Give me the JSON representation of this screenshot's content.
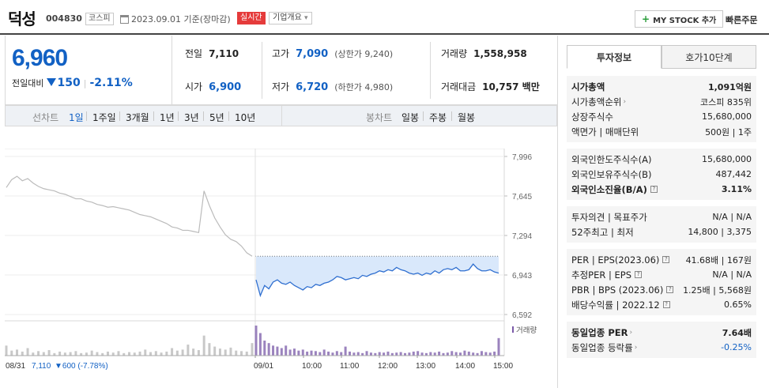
{
  "header": {
    "name": "덕성",
    "code": "004830",
    "market": "코스피",
    "date_text": "2023.09.01 기준(장마감)",
    "realtime": "실시간",
    "company_info": "기업개요",
    "my_stock": "MY STOCK 추가",
    "quick_order": "빠른주문"
  },
  "price": {
    "current": "6,960",
    "change_label": "전일대비",
    "change_value": "150",
    "change_pct": "-2.11%"
  },
  "stats": {
    "prev_label": "전일",
    "prev": "7,110",
    "high_label": "고가",
    "high": "7,090",
    "upper_limit": "(상한가 9,240)",
    "volume_label": "거래량",
    "volume": "1,558,958",
    "open_label": "시가",
    "open": "6,900",
    "low_label": "저가",
    "low": "6,720",
    "lower_limit": "(하한가 4,980)",
    "amount_label": "거래대금",
    "amount": "10,757 백만"
  },
  "period_bar": {
    "line_label": "선차트",
    "line_items": [
      "1일",
      "1주일",
      "3개월",
      "1년",
      "3년",
      "5년",
      "10년"
    ],
    "candle_label": "봉차트",
    "candle_items": [
      "일봉",
      "주봉",
      "월봉"
    ]
  },
  "chart_data": {
    "type": "line",
    "y_ticks": [
      "7,996",
      "7,645",
      "7,294",
      "6,943",
      "6,592"
    ],
    "y_range": [
      6592,
      7996
    ],
    "x_ticks": [
      "09/01",
      "10:00",
      "11:00",
      "12:00",
      "13:00",
      "14:00",
      "15:00"
    ],
    "volume_label": "거래량",
    "prev_day_label": "08/31",
    "prev_day_close": "7,110",
    "prev_day_change": "▼600 (-7.78%)",
    "prev_close_ref": 7110,
    "prev_day_prices": [
      7720,
      7790,
      7820,
      7780,
      7800,
      7760,
      7730,
      7710,
      7700,
      7690,
      7670,
      7660,
      7640,
      7620,
      7620,
      7600,
      7590,
      7570,
      7560,
      7545,
      7550,
      7540,
      7530,
      7520,
      7500,
      7480,
      7470,
      7460,
      7440,
      7420,
      7400,
      7370,
      7360,
      7340,
      7340,
      7330,
      7320,
      7690,
      7560,
      7450,
      7370,
      7300,
      7260,
      7240,
      7200,
      7140,
      7110
    ],
    "day_prices": [
      6900,
      6760,
      6850,
      6820,
      6880,
      6900,
      6870,
      6860,
      6880,
      6850,
      6830,
      6810,
      6840,
      6830,
      6860,
      6850,
      6870,
      6880,
      6900,
      6930,
      6920,
      6900,
      6910,
      6920,
      6910,
      6940,
      6930,
      6950,
      6960,
      6980,
      6970,
      6990,
      6980,
      7010,
      6990,
      6980,
      6960,
      6950,
      6960,
      6940,
      6960,
      6950,
      6980,
      6960,
      6990,
      7000,
      6990,
      7010,
      6980,
      6980,
      6990,
      7040,
      7000,
      6980,
      6980,
      6990,
      6970,
      6960
    ],
    "prev_day_volumes": [
      20,
      10,
      12,
      8,
      15,
      6,
      9,
      7,
      11,
      5,
      8,
      6,
      7,
      9,
      5,
      6,
      10,
      7,
      5,
      8,
      6,
      9,
      5,
      7,
      6,
      8,
      12,
      7,
      9,
      6,
      8,
      15,
      10,
      12,
      22,
      14,
      11,
      40,
      25,
      18,
      14,
      12,
      16,
      10,
      9,
      8,
      25
    ],
    "day_volumes": [
      60,
      45,
      30,
      25,
      20,
      18,
      15,
      20,
      12,
      14,
      10,
      12,
      8,
      10,
      9,
      7,
      12,
      8,
      6,
      9,
      7,
      18,
      8,
      6,
      7,
      5,
      9,
      6,
      5,
      7,
      6,
      8,
      5,
      6,
      7,
      5,
      6,
      8,
      9,
      6,
      5,
      7,
      6,
      8,
      5,
      6,
      9,
      7,
      6,
      10,
      8,
      6,
      5,
      9,
      7,
      6,
      8,
      35
    ]
  },
  "panel": {
    "tab_info": "투자정보",
    "tab_orderbook": "호가10단계",
    "market_cap_label": "시가총액",
    "market_cap": "1,091억원",
    "cap_rank_label": "시가총액순위",
    "cap_rank": "코스피 835위",
    "shares_label": "상장주식수",
    "shares": "15,680,000",
    "par_label": "액면가 | 매매단위",
    "par": "500원 | 1주",
    "foreign_limit_label": "외국인한도주식수(A)",
    "foreign_limit": "15,680,000",
    "foreign_hold_label": "외국인보유주식수(B)",
    "foreign_hold": "487,442",
    "foreign_ratio_label": "외국인소진율(B/A)",
    "foreign_ratio": "3.11%",
    "opinion_label": "투자의견 | 목표주가",
    "opinion": "N/A | N/A",
    "week52_label": "52주최고 | 최저",
    "week52": "14,800 | 3,375",
    "per_label": "PER | EPS(2023.06)",
    "per": "41.68배 | 167원",
    "est_per_label": "추정PER | EPS",
    "est_per": "N/A | N/A",
    "pbr_label": "PBR | BPS (2023.06)",
    "pbr": "1.25배 | 5,568원",
    "dividend_label": "배당수익률 | 2022.12",
    "dividend": "0.65%",
    "sector_per_label": "동일업종 PER",
    "sector_per": "7.64배",
    "sector_rate_label": "동일업종 등락률",
    "sector_rate": "-0.25%"
  },
  "colors": {
    "accent_blue": "#1261c4",
    "realtime_red": "#e53b3b",
    "volume_purple": "#7a5aa8"
  }
}
